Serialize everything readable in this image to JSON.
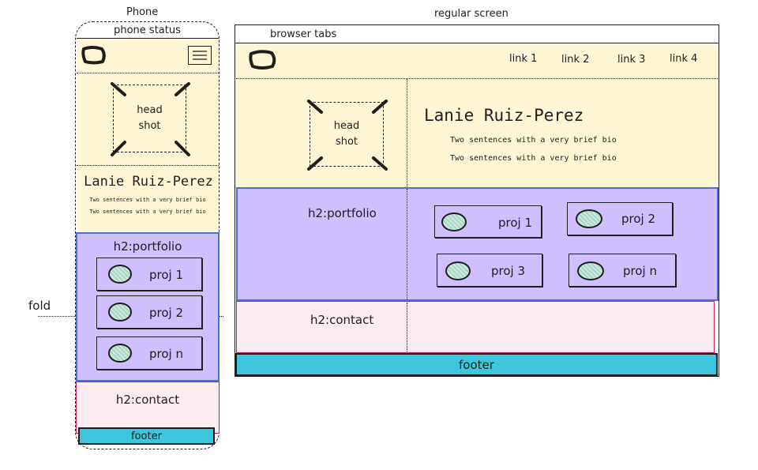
{
  "titles": {
    "phone": "Phone",
    "screen": "regular screen",
    "fold": "fold"
  },
  "phone": {
    "status": "phone status",
    "headshot": "head shot",
    "name": "Lanie Ruiz-Perez",
    "bio": [
      "Two sentences with a very brief bio",
      "Two sentences with a very brief bio"
    ],
    "portfolio_heading": "h2:portfolio",
    "projects": [
      "proj 1",
      "proj 2",
      "proj n"
    ],
    "contact_heading": "h2:contact",
    "footer": "footer"
  },
  "desktop": {
    "browser_tabs": "browser tabs",
    "nav_links": [
      "link 1",
      "link 2",
      "link 3",
      "link 4"
    ],
    "headshot": "head shot",
    "name": "Lanie Ruiz-Perez",
    "bio": [
      "Two sentences with a very brief bio",
      "Two sentences with a very brief bio"
    ],
    "portfolio_heading": "h2:portfolio",
    "projects": [
      "proj 1",
      "proj 2",
      "proj 3",
      "proj n"
    ],
    "contact_heading": "h2:contact",
    "footer": "footer"
  },
  "colors": {
    "hero": "#fff6d6",
    "portfolio": "#d0bfff",
    "portfolio_border": "#4a6fd8",
    "contact": "#fdecef",
    "contact_border": "#c2255c",
    "footer": "#3ec5de"
  },
  "icons": [
    "logo-icon",
    "hamburger-menu-icon",
    "headshot-placeholder-icon",
    "project-thumbnail-icon"
  ]
}
